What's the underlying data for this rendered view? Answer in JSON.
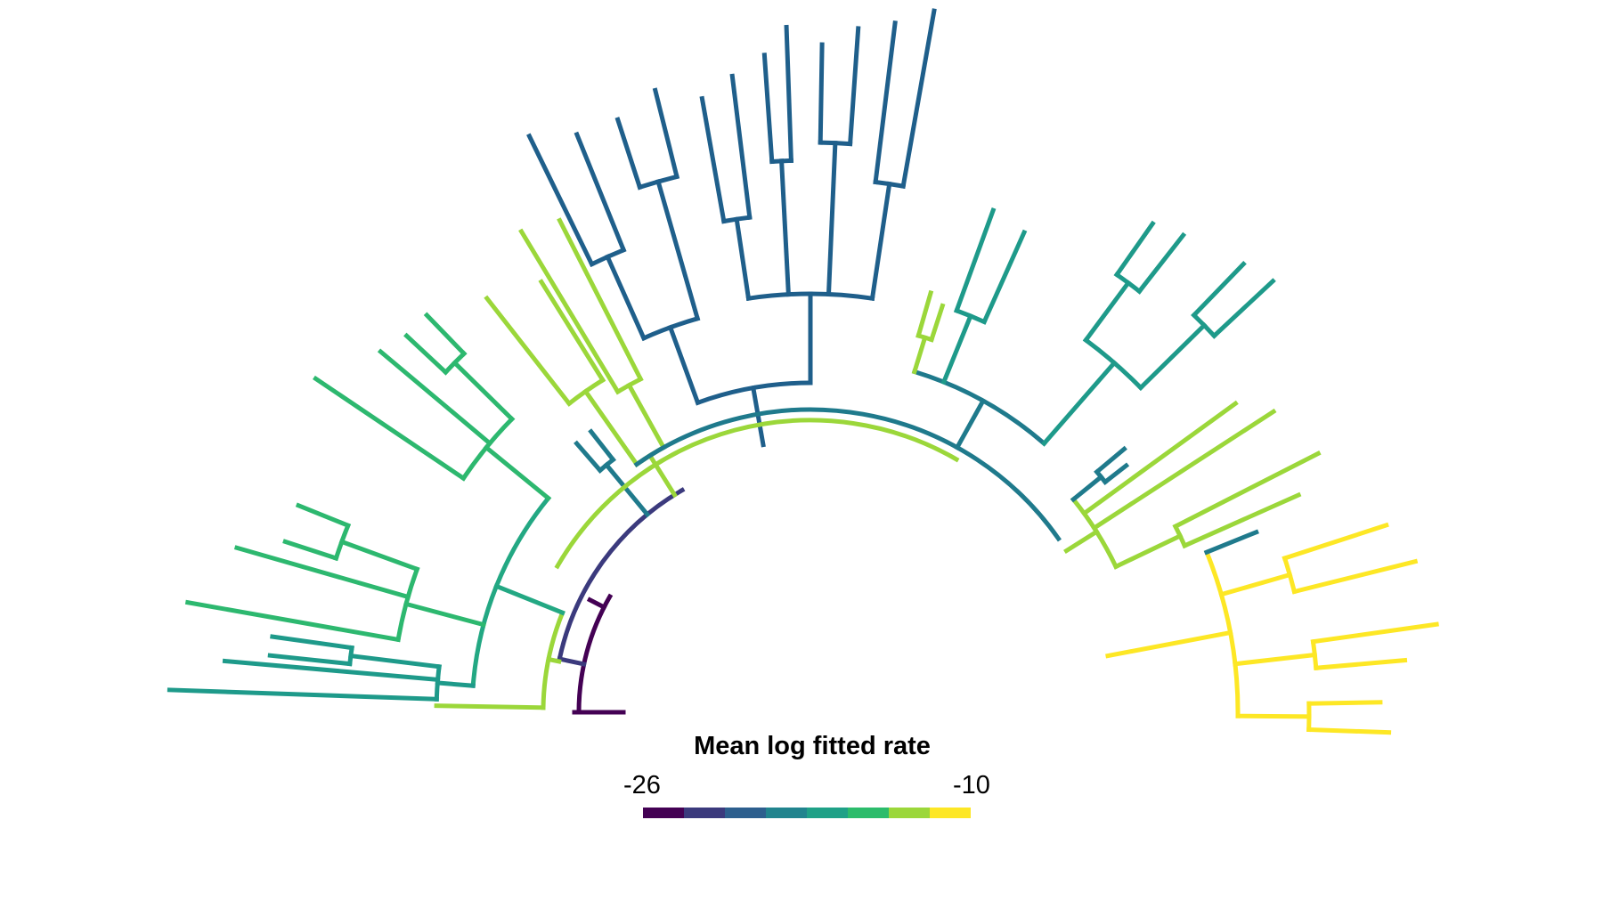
{
  "legend": {
    "title": "Mean log fitted rate",
    "min_label": "-26",
    "max_label": "-10",
    "colors": [
      "#440154",
      "#3b3a7d",
      "#2d5f8e",
      "#21848e",
      "#1fa187",
      "#2cbc6b",
      "#9bd73a",
      "#fde725"
    ]
  },
  "palette": {
    "v1": "#440154",
    "v2": "#3b3a7d",
    "v3": "#1f5f8b",
    "v4": "#1f7a8c",
    "v5": "#1e9a8a",
    "v6": "#2db86f",
    "v7": "#9bd73a",
    "v8": "#fde725",
    "v5b": "#23a883"
  }
}
